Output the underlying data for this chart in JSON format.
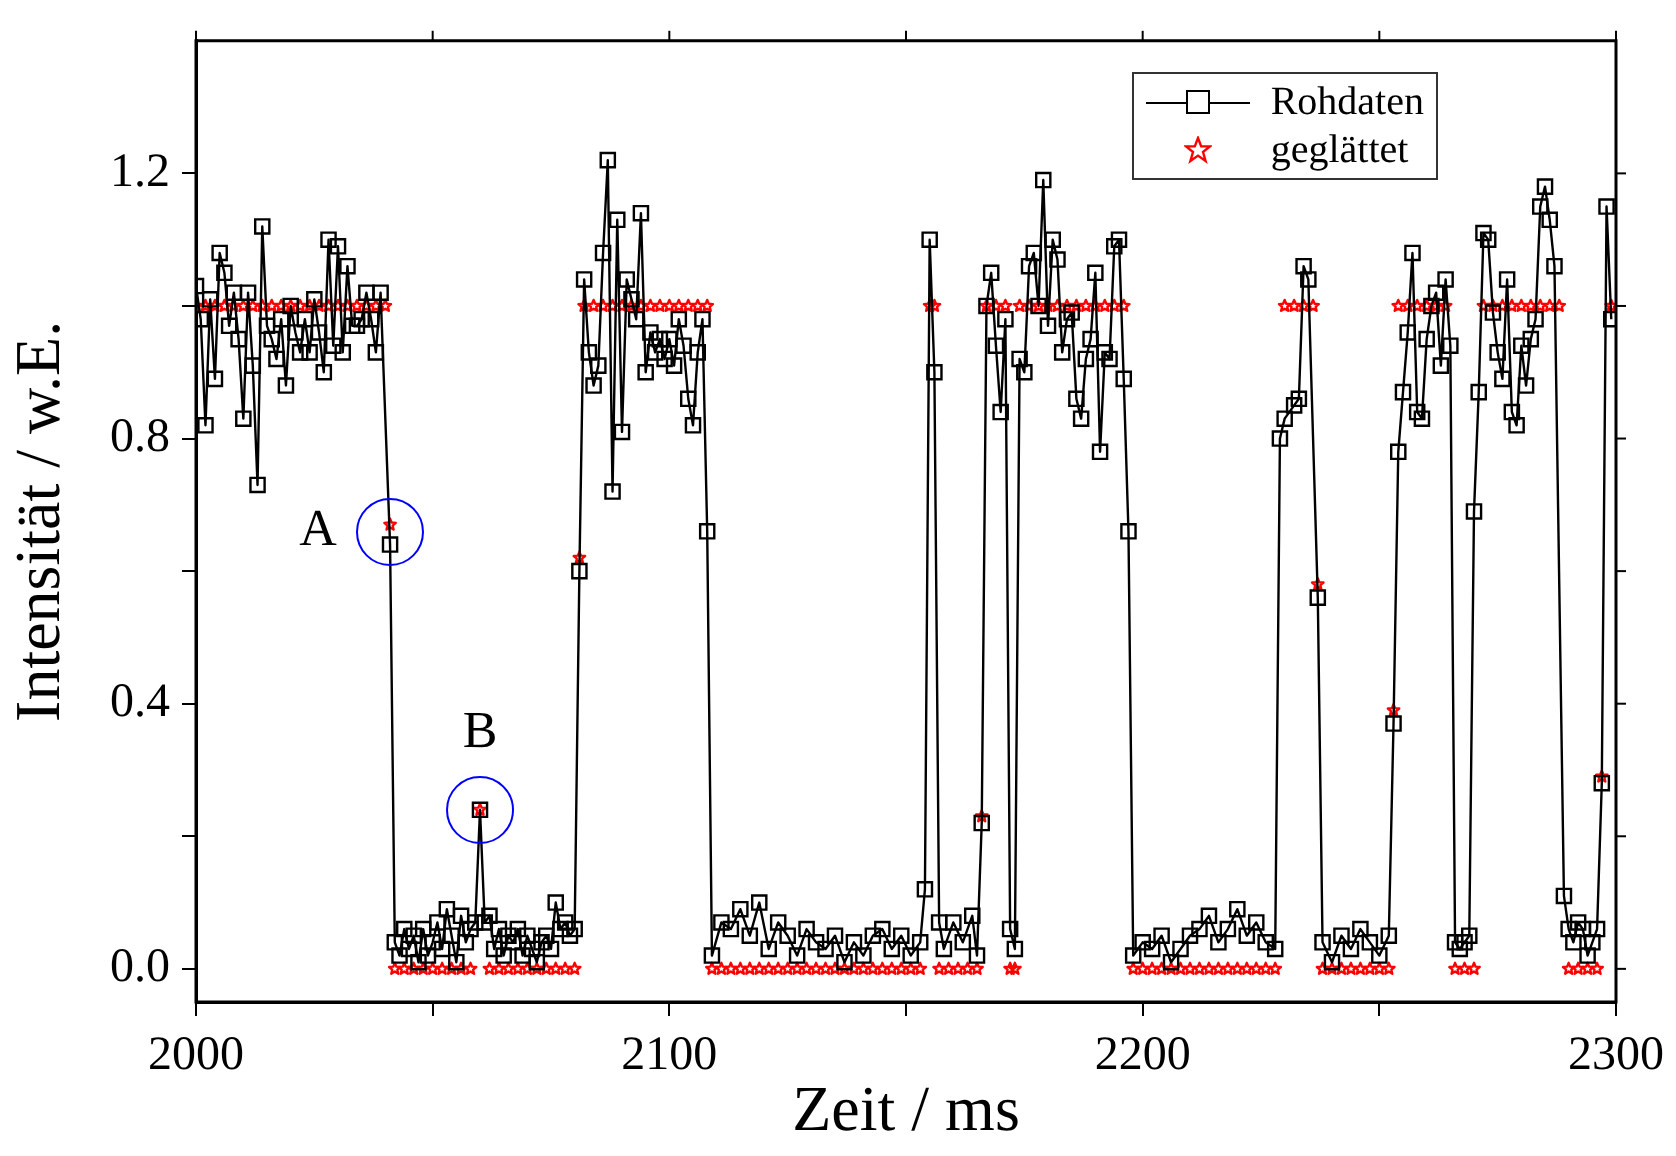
{
  "chart_data": {
    "type": "line",
    "xlabel": "Zeit / ms",
    "ylabel": "Intensität / w.E.",
    "xlim": [
      2000,
      2300
    ],
    "xticks": [
      2000,
      {
        "value": 2050,
        "label": null
      },
      2100,
      {
        "value": 2150,
        "label": null
      },
      2200,
      {
        "value": 2250,
        "label": null
      },
      2300
    ],
    "ylim": [
      -0.05,
      1.4
    ],
    "yticks": [
      {
        "value": 0,
        "label": "0.0"
      },
      {
        "value": 0.2,
        "label": null
      },
      {
        "value": 0.4,
        "label": "0.4"
      },
      {
        "value": 0.6,
        "label": null
      },
      {
        "value": 0.8,
        "label": "0.8"
      },
      {
        "value": 1.0,
        "label": null
      },
      {
        "value": 1.2,
        "label": "1.2"
      }
    ],
    "grid": false,
    "legend": "top right",
    "annotations": [
      {
        "text": "A",
        "x": 2041,
        "y": 0.66
      },
      {
        "text": "B",
        "x": 2060,
        "y": 0.24
      }
    ],
    "series": [
      {
        "name": "Rohdaten",
        "type": "line",
        "marker": "square",
        "line_style": "solid",
        "color": "#000000",
        "x": [
          2000,
          2001,
          2002,
          2003,
          2004,
          2005,
          2006,
          2007,
          2008,
          2009,
          2010,
          2011,
          2012,
          2013,
          2014,
          2015,
          2016,
          2017,
          2018,
          2019,
          2020,
          2021,
          2022,
          2023,
          2024,
          2025,
          2026,
          2027,
          2028,
          2029,
          2030,
          2031,
          2032,
          2033,
          2034,
          2035,
          2036,
          2037,
          2038,
          2039,
          2041,
          2042,
          2043,
          2044,
          2045,
          2046,
          2047,
          2048,
          2049,
          2050,
          2051,
          2052,
          2053,
          2054,
          2055,
          2056,
          2057,
          2058,
          2059,
          2060,
          2061,
          2062,
          2063,
          2064,
          2065,
          2066,
          2067,
          2068,
          2069,
          2070,
          2071,
          2072,
          2073,
          2074,
          2075,
          2076,
          2077,
          2078,
          2079,
          2080,
          2081,
          2082,
          2083,
          2084,
          2085,
          2086,
          2087,
          2088,
          2089,
          2090,
          2091,
          2092,
          2093,
          2094,
          2095,
          2096,
          2097,
          2098,
          2099,
          2100,
          2101,
          2102,
          2103,
          2104,
          2105,
          2106,
          2107,
          2108,
          2109,
          2111,
          2113,
          2115,
          2117,
          2119,
          2121,
          2123,
          2125,
          2127,
          2129,
          2131,
          2133,
          2135,
          2137,
          2139,
          2141,
          2143,
          2145,
          2147,
          2149,
          2151,
          2153,
          2154,
          2155,
          2156,
          2157,
          2158,
          2160,
          2162,
          2164,
          2165,
          2166,
          2167,
          2168,
          2169,
          2170,
          2171,
          2172,
          2173,
          2174,
          2175,
          2176,
          2177,
          2178,
          2179,
          2180,
          2181,
          2182,
          2183,
          2184,
          2185,
          2186,
          2187,
          2188,
          2189,
          2190,
          2191,
          2192,
          2193,
          2194,
          2195,
          2196,
          2197,
          2198,
          2200,
          2202,
          2204,
          2206,
          2208,
          2210,
          2212,
          2214,
          2216,
          2218,
          2220,
          2222,
          2224,
          2226,
          2228,
          2229,
          2230,
          2232,
          2233,
          2234,
          2235,
          2237,
          2238,
          2240,
          2242,
          2244,
          2246,
          2248,
          2250,
          2252,
          2253,
          2254,
          2255,
          2256,
          2257,
          2258,
          2259,
          2260,
          2261,
          2262,
          2263,
          2264,
          2265,
          2266,
          2267,
          2268,
          2269,
          2270,
          2271,
          2272,
          2273,
          2274,
          2275,
          2276,
          2277,
          2278,
          2279,
          2280,
          2281,
          2282,
          2283,
          2284,
          2285,
          2286,
          2287,
          2289,
          2290,
          2291,
          2292,
          2293,
          2294,
          2295,
          2296,
          2297,
          2298,
          2299
        ],
        "values": [
          1.03,
          0.98,
          0.82,
          1.01,
          0.89,
          1.08,
          1.05,
          0.97,
          1.02,
          0.95,
          0.83,
          1.02,
          0.91,
          0.73,
          1.12,
          0.97,
          0.95,
          0.92,
          0.98,
          0.88,
          1.0,
          0.96,
          0.93,
          0.98,
          0.93,
          1.01,
          0.96,
          0.9,
          1.1,
          0.94,
          1.09,
          0.93,
          1.06,
          0.97,
          0.97,
          0.98,
          1.02,
          0.98,
          0.93,
          1.02,
          0.64,
          0.04,
          0.02,
          0.06,
          0.03,
          0.05,
          0.01,
          0.06,
          0.02,
          0.04,
          0.07,
          0.03,
          0.09,
          0.05,
          0.01,
          0.08,
          0.04,
          0.06,
          0.07,
          0.24,
          0.07,
          0.08,
          0.03,
          0.06,
          0.02,
          0.05,
          0.04,
          0.06,
          0.02,
          0.05,
          0.03,
          0.01,
          0.04,
          0.05,
          0.03,
          0.1,
          0.06,
          0.07,
          0.05,
          0.06,
          0.6,
          1.04,
          0.93,
          0.88,
          0.91,
          1.08,
          1.22,
          0.72,
          1.13,
          0.81,
          1.04,
          1.01,
          0.98,
          1.14,
          0.9,
          0.96,
          0.93,
          0.95,
          0.92,
          0.95,
          0.91,
          0.98,
          0.94,
          0.86,
          0.82,
          0.93,
          0.98,
          0.66,
          0.02,
          0.07,
          0.06,
          0.09,
          0.05,
          0.1,
          0.03,
          0.07,
          0.05,
          0.02,
          0.06,
          0.04,
          0.03,
          0.05,
          0.01,
          0.04,
          0.02,
          0.05,
          0.06,
          0.03,
          0.05,
          0.02,
          0.04,
          0.12,
          1.1,
          0.9,
          0.07,
          0.03,
          0.07,
          0.04,
          0.08,
          0.02,
          0.22,
          1.0,
          1.05,
          0.94,
          0.84,
          0.98,
          0.06,
          0.03,
          0.92,
          0.9,
          1.06,
          1.08,
          1.0,
          1.19,
          0.97,
          1.1,
          1.07,
          0.93,
          0.98,
          0.99,
          0.86,
          0.83,
          0.92,
          0.95,
          1.05,
          0.78,
          0.93,
          0.92,
          1.09,
          1.1,
          0.89,
          0.66,
          0.02,
          0.04,
          0.03,
          0.05,
          0.01,
          0.03,
          0.05,
          0.06,
          0.08,
          0.04,
          0.06,
          0.09,
          0.05,
          0.07,
          0.04,
          0.03,
          0.8,
          0.83,
          0.85,
          0.86,
          1.06,
          1.04,
          0.56,
          0.04,
          0.01,
          0.05,
          0.03,
          0.06,
          0.04,
          0.02,
          0.05,
          0.37,
          0.78,
          0.87,
          0.96,
          1.08,
          0.84,
          0.83,
          0.95,
          1.0,
          1.02,
          0.91,
          1.04,
          0.94,
          0.04,
          0.03,
          0.04,
          0.05,
          0.69,
          0.87,
          1.11,
          1.1,
          0.99,
          0.93,
          0.89,
          1.04,
          0.84,
          0.82,
          0.94,
          0.88,
          0.95,
          0.98,
          1.15,
          1.18,
          1.13,
          1.06,
          0.11,
          0.06,
          0.04,
          0.07,
          0.06,
          0.02,
          0.04,
          0.06,
          0.28,
          1.15,
          0.98
        ]
      },
      {
        "name": "geglättet",
        "type": "scatter",
        "marker": "star",
        "color": "#ff0000",
        "x": [
          2000,
          2002,
          2004,
          2006,
          2008,
          2010,
          2012,
          2014,
          2016,
          2018,
          2020,
          2022,
          2024,
          2026,
          2028,
          2030,
          2032,
          2034,
          2036,
          2038,
          2040,
          2041,
          2042,
          2044,
          2046,
          2048,
          2050,
          2052,
          2054,
          2056,
          2058,
          2060,
          2062,
          2064,
          2066,
          2068,
          2070,
          2072,
          2074,
          2076,
          2078,
          2080,
          2081,
          2082,
          2084,
          2086,
          2088,
          2090,
          2092,
          2094,
          2096,
          2098,
          2100,
          2102,
          2104,
          2106,
          2108,
          2109,
          2111,
          2113,
          2115,
          2117,
          2119,
          2121,
          2123,
          2125,
          2127,
          2129,
          2131,
          2133,
          2135,
          2137,
          2139,
          2141,
          2143,
          2145,
          2147,
          2149,
          2151,
          2153,
          2155,
          2156,
          2157,
          2159,
          2161,
          2163,
          2165,
          2166,
          2167,
          2169,
          2171,
          2172,
          2173,
          2174,
          2176,
          2178,
          2180,
          2182,
          2184,
          2186,
          2188,
          2190,
          2192,
          2194,
          2196,
          2198,
          2200,
          2202,
          2204,
          2206,
          2208,
          2210,
          2212,
          2214,
          2216,
          2218,
          2220,
          2222,
          2224,
          2226,
          2228,
          2230,
          2232,
          2234,
          2236,
          2237,
          2238,
          2240,
          2242,
          2244,
          2246,
          2248,
          2250,
          2252,
          2253,
          2254,
          2256,
          2258,
          2260,
          2262,
          2264,
          2266,
          2268,
          2270,
          2272,
          2274,
          2276,
          2278,
          2280,
          2282,
          2284,
          2286,
          2288,
          2290,
          2292,
          2294,
          2296,
          2297,
          2299
        ],
        "values": [
          1,
          1,
          1,
          1,
          1,
          1,
          1,
          1,
          1,
          1,
          1,
          1,
          1,
          1,
          1,
          1,
          1,
          1,
          1,
          1,
          1,
          0.67,
          0,
          0,
          0,
          0,
          0,
          0,
          0,
          0,
          0,
          0.24,
          0,
          0,
          0,
          0,
          0,
          0,
          0,
          0,
          0,
          0,
          0.62,
          1,
          1,
          1,
          1,
          1,
          1,
          1,
          1,
          1,
          1,
          1,
          1,
          1,
          1,
          0,
          0,
          0,
          0,
          0,
          0,
          0,
          0,
          0,
          0,
          0,
          0,
          0,
          0,
          0,
          0,
          0,
          0,
          0,
          0,
          0,
          0,
          0,
          1,
          1,
          0,
          0,
          0,
          0,
          0,
          0.23,
          1,
          1,
          1,
          0,
          0,
          1,
          1,
          1,
          1,
          1,
          1,
          1,
          1,
          1,
          1,
          1,
          1,
          0,
          0,
          0,
          0,
          0,
          0,
          0,
          0,
          0,
          0,
          0,
          0,
          0,
          0,
          0,
          0,
          1,
          1,
          1,
          1,
          0.58,
          0,
          0,
          0,
          0,
          0,
          0,
          0,
          0,
          0.39,
          1,
          1,
          1,
          1,
          1,
          1,
          0,
          0,
          0,
          1,
          1,
          1,
          1,
          1,
          1,
          1,
          1,
          1,
          0,
          0,
          0,
          0,
          0.29,
          1
        ]
      }
    ]
  }
}
